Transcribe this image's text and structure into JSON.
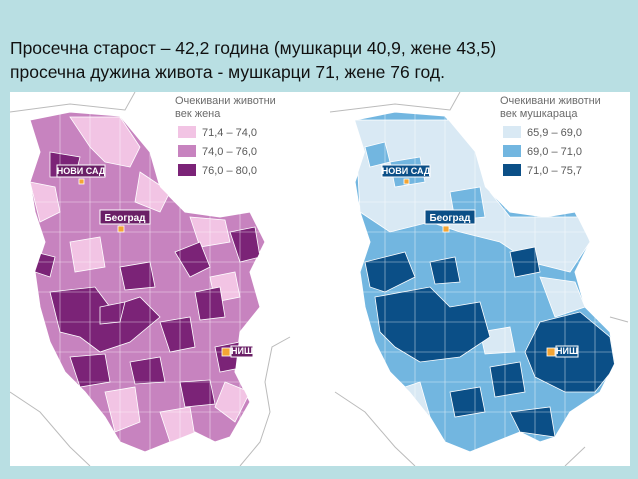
{
  "header": {
    "line1": "Просечна старост – 42,2 година (мушкарци 40,9, жене 43,5)",
    "line2": "просечна дужина живота  - мушкарци 71, жене 76 год."
  },
  "maps": [
    {
      "legend_title_1": "Очекивани животни",
      "legend_title_2": "век жена",
      "ranges": [
        "71,4 – 74,0",
        "74,0 – 76,0",
        "76,0 – 80,0"
      ],
      "colors": [
        "#f2c4e4",
        "#c783bf",
        "#7b2377"
      ],
      "cities": {
        "novi_sad": "НОВИ САД",
        "beograd": "Београд",
        "nis": "НИШ"
      }
    },
    {
      "legend_title_1": "Очекивани животни",
      "legend_title_2": "век мушкараца",
      "ranges": [
        "65,9 – 69,0",
        "69,0 – 71,0",
        "71,0 – 75,7"
      ],
      "colors": [
        "#d9e9f4",
        "#72b6e0",
        "#0b4f87"
      ],
      "cities": {
        "novi_sad": "НОВИ САД",
        "beograd": "Београд",
        "nis": "НИШ"
      }
    }
  ]
}
